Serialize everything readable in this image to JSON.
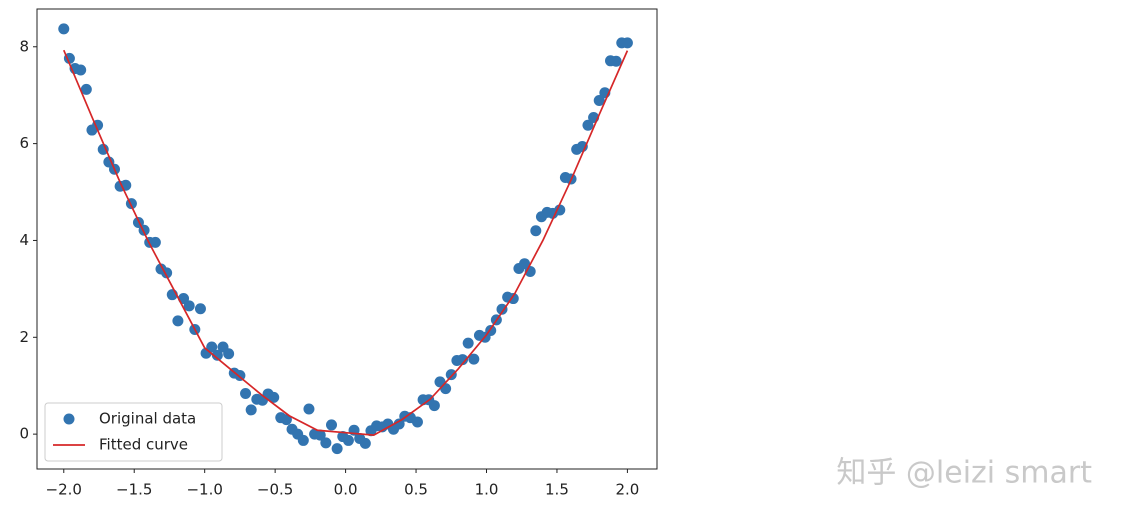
{
  "chart_data": {
    "type": "scatter",
    "xlim": [
      -2.19,
      2.21
    ],
    "ylim": [
      -0.72,
      8.78
    ],
    "xticks": [
      {
        "value": -2,
        "label": "−2.0"
      },
      {
        "value": -1.5,
        "label": "−1.5"
      },
      {
        "value": -1,
        "label": "−1.0"
      },
      {
        "value": -0.5,
        "label": "−0.5"
      },
      {
        "value": 0,
        "label": "0.0"
      },
      {
        "value": 0.5,
        "label": "0.5"
      },
      {
        "value": 1,
        "label": "1.0"
      },
      {
        "value": 1.5,
        "label": "1.5"
      },
      {
        "value": 2,
        "label": "2.0"
      }
    ],
    "yticks": [
      0,
      2,
      4,
      6,
      8
    ],
    "grid": false,
    "legend": "lower left",
    "series": [
      {
        "name": "Original data",
        "type": "scatter",
        "color": "#3274b0",
        "x": [
          -2.0,
          -1.96,
          -1.92,
          -1.88,
          -1.84,
          -1.8,
          -1.76,
          -1.72,
          -1.68,
          -1.64,
          -1.6,
          -1.56,
          -1.52,
          -1.47,
          -1.43,
          -1.39,
          -1.35,
          -1.31,
          -1.27,
          -1.23,
          -1.19,
          -1.15,
          -1.11,
          -1.07,
          -1.03,
          -0.99,
          -0.95,
          -0.91,
          -0.87,
          -0.83,
          -0.79,
          -0.75,
          -0.71,
          -0.67,
          -0.63,
          -0.59,
          -0.55,
          -0.51,
          -0.46,
          -0.42,
          -0.38,
          -0.34,
          -0.3,
          -0.26,
          -0.22,
          -0.18,
          -0.14,
          -0.1,
          -0.06,
          -0.02,
          0.02,
          0.06,
          0.1,
          0.14,
          0.18,
          0.22,
          0.26,
          0.3,
          0.34,
          0.38,
          0.42,
          0.46,
          0.51,
          0.55,
          0.59,
          0.63,
          0.67,
          0.71,
          0.75,
          0.79,
          0.83,
          0.87,
          0.91,
          0.95,
          0.99,
          1.03,
          1.07,
          1.11,
          1.15,
          1.19,
          1.23,
          1.27,
          1.31,
          1.35,
          1.39,
          1.43,
          1.47,
          1.52,
          1.56,
          1.6,
          1.64,
          1.68,
          1.72,
          1.76,
          1.8,
          1.84,
          1.88,
          1.92,
          1.96,
          2.0
        ],
        "values": [
          8.37,
          7.76,
          7.55,
          7.52,
          7.12,
          6.28,
          6.38,
          5.88,
          5.62,
          5.47,
          5.12,
          5.14,
          4.76,
          4.37,
          4.21,
          3.96,
          3.96,
          3.41,
          3.33,
          2.88,
          2.34,
          2.8,
          2.65,
          2.16,
          2.59,
          1.67,
          1.8,
          1.63,
          1.8,
          1.66,
          1.26,
          1.21,
          0.84,
          0.5,
          0.72,
          0.7,
          0.83,
          0.76,
          0.34,
          0.3,
          0.1,
          0.0,
          -0.13,
          0.52,
          0.0,
          -0.02,
          -0.18,
          0.19,
          -0.3,
          -0.05,
          -0.13,
          0.08,
          -0.09,
          -0.19,
          0.07,
          0.17,
          0.15,
          0.21,
          0.1,
          0.21,
          0.37,
          0.34,
          0.25,
          0.71,
          0.71,
          0.59,
          1.08,
          0.94,
          1.23,
          1.52,
          1.54,
          1.88,
          1.55,
          2.04,
          2.0,
          2.14,
          2.36,
          2.58,
          2.83,
          2.8,
          3.42,
          3.52,
          3.36,
          4.2,
          4.49,
          4.58,
          4.56,
          4.63,
          5.3,
          5.27,
          5.88,
          5.94,
          6.38,
          6.54,
          6.89,
          7.05,
          7.71,
          7.7,
          8.08,
          8.08
        ]
      },
      {
        "name": "Fitted curve",
        "type": "line",
        "color": "#d62728",
        "x": [
          -2,
          -1.8,
          -1.6,
          -1.4,
          -1.2,
          -1,
          -0.8,
          -0.6,
          -0.4,
          -0.2,
          0,
          0.2,
          0.4,
          0.6,
          0.8,
          1,
          1.2,
          1.4,
          1.6,
          1.8,
          2
        ],
        "values": [
          7.93,
          6.55,
          5.2,
          3.98,
          2.88,
          1.78,
          1.3,
          0.82,
          0.38,
          0.08,
          0.03,
          -0.02,
          0.3,
          0.72,
          1.35,
          2.05,
          2.9,
          4.0,
          5.25,
          6.6,
          7.92
        ]
      }
    ]
  },
  "watermark": "知乎 @leizi smart"
}
